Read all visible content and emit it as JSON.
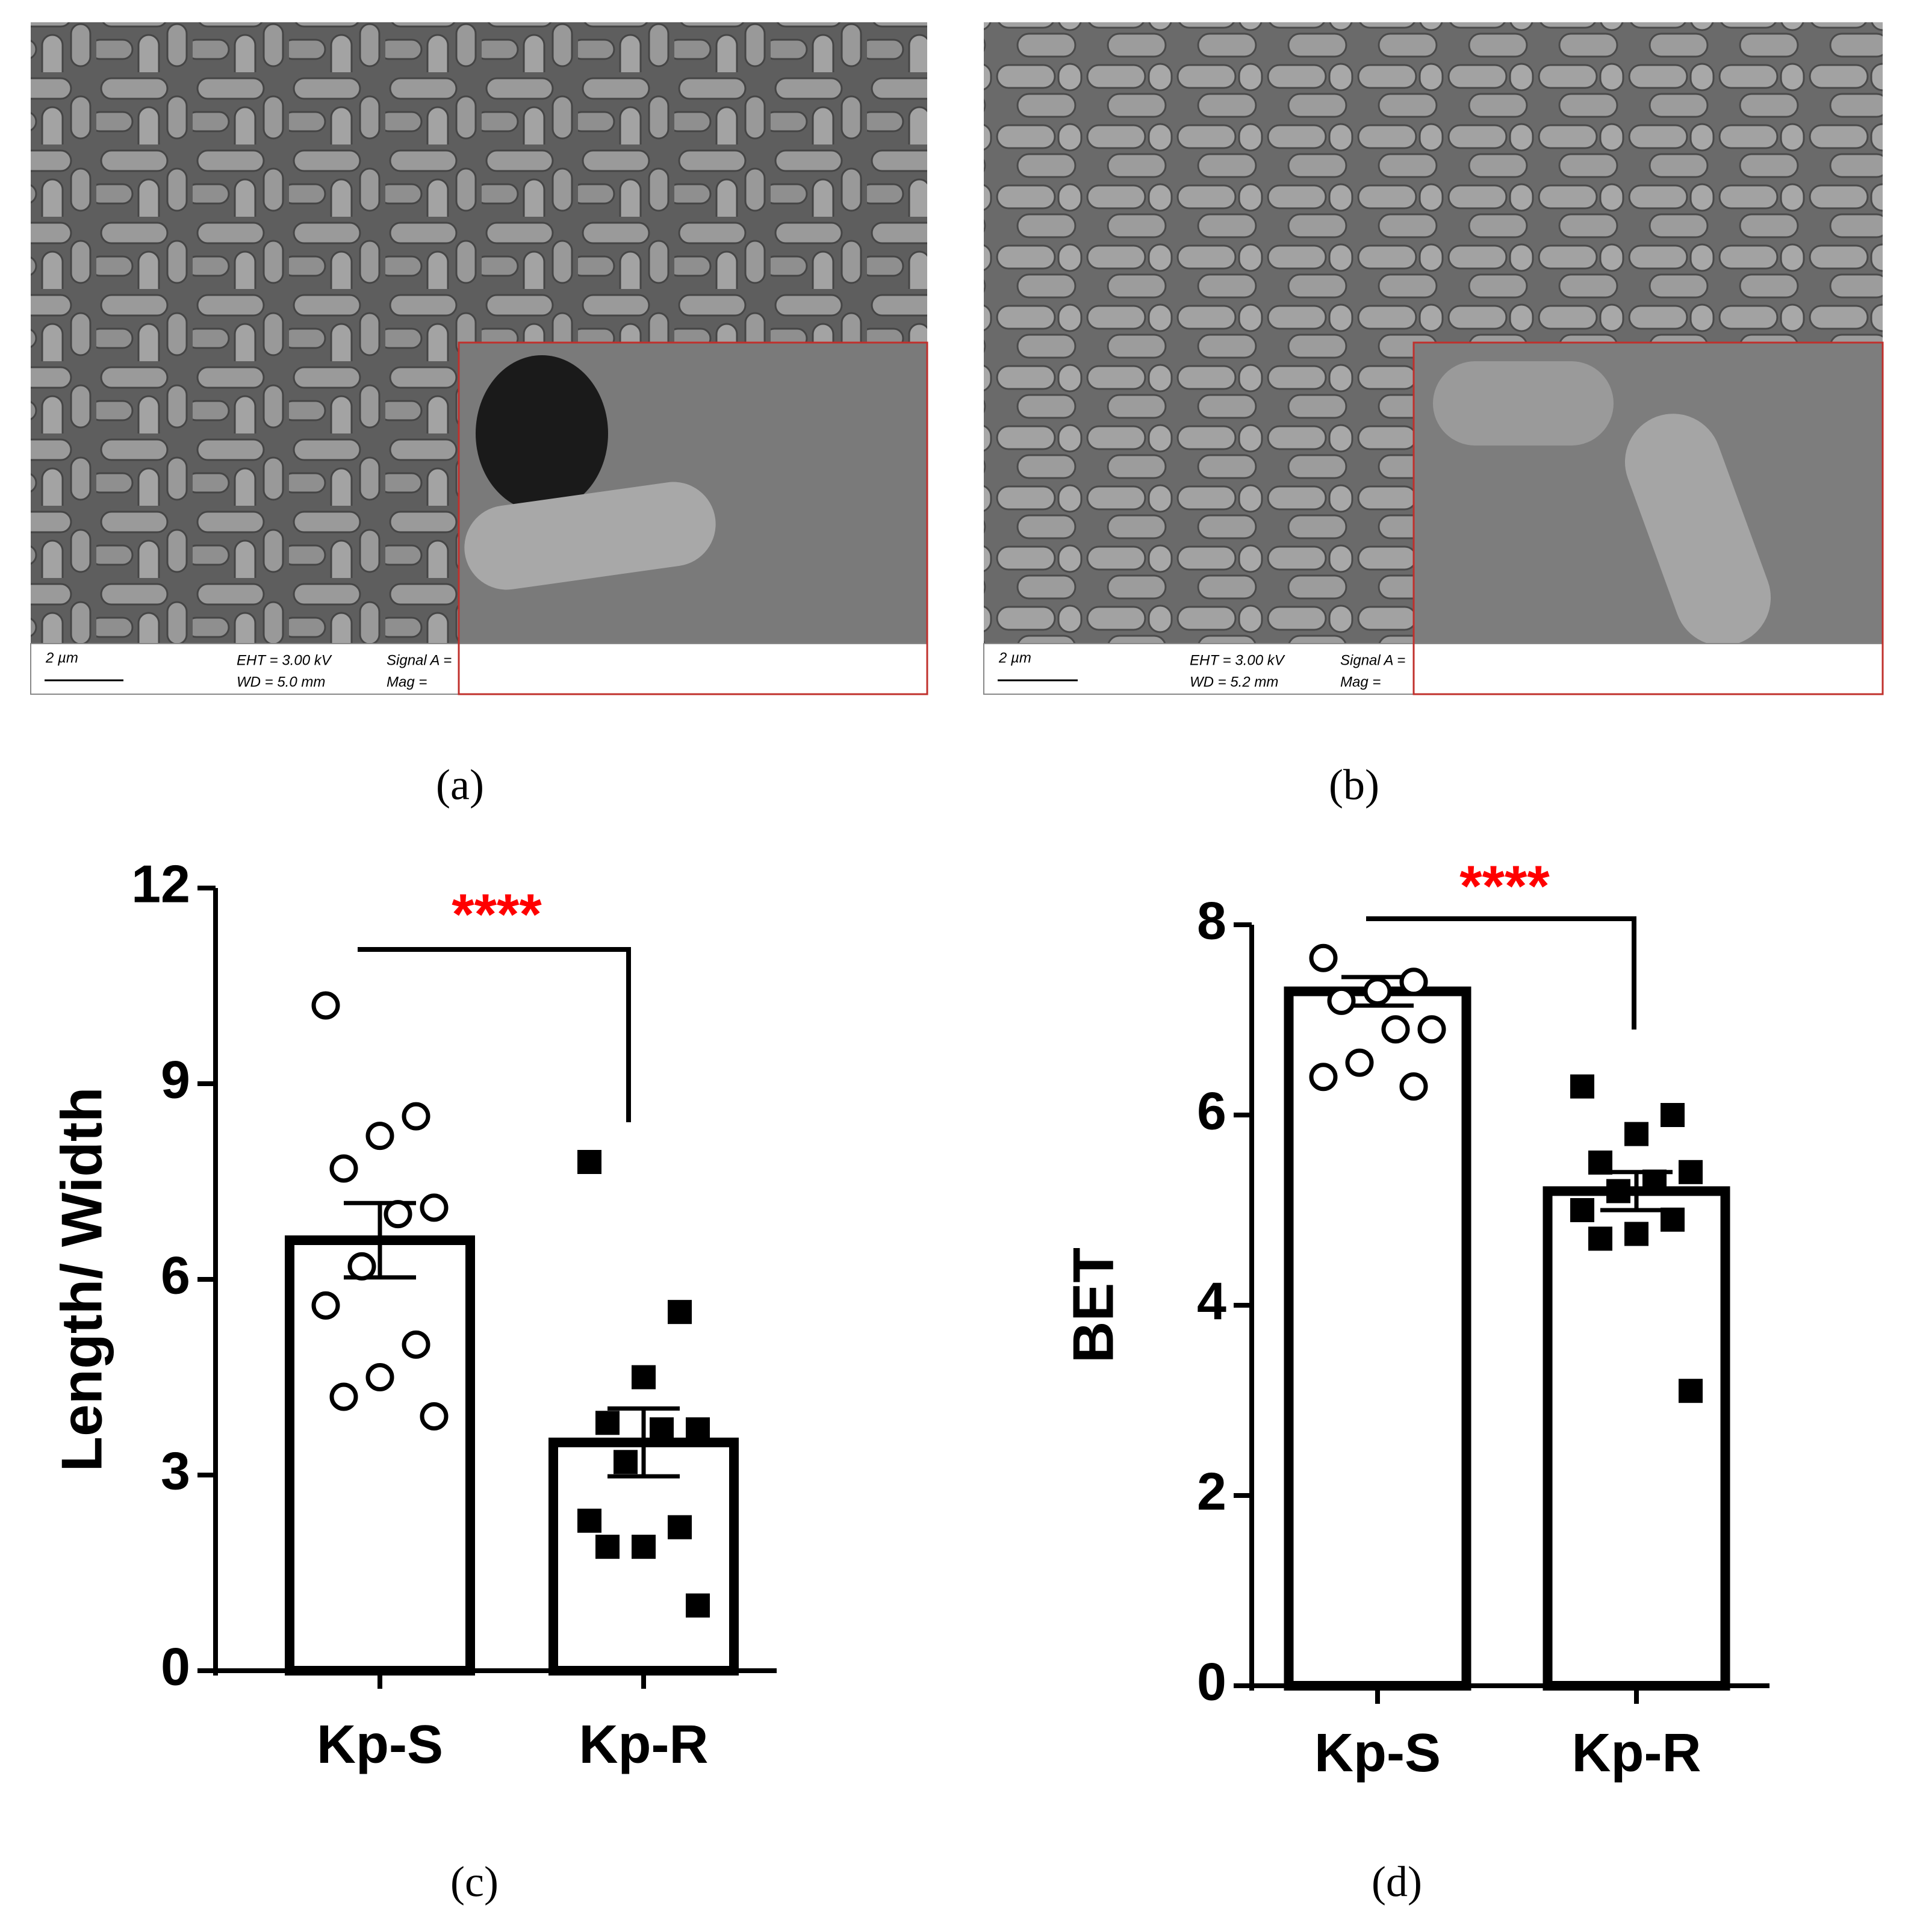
{
  "figure": {
    "panels": [
      "(a)",
      "(b)",
      "(c)",
      "(d)"
    ]
  },
  "images": [
    {
      "scale_bar": "2 µm",
      "eht": "EHT = 3.00 kV",
      "wd": "WD = 5.0 mm",
      "signal": "Signal A =",
      "mag": "Mag ="
    },
    {
      "scale_bar": "2 µm",
      "eht": "EHT = 3.00 kV",
      "wd": "WD = 5.2 mm",
      "signal": "Signal A =",
      "mag": "Mag ="
    }
  ],
  "chart_data": [
    {
      "type": "bar",
      "y_label": "Length/ Width",
      "categories": [
        "Kp-S",
        "Kp-R"
      ],
      "values": [
        6.6,
        3.5
      ],
      "errors": [
        0.57,
        0.52
      ],
      "points": [
        [
          10.2,
          8.5,
          8.2,
          7.7,
          7.1,
          7.0,
          6.2,
          5.6,
          5.0,
          4.5,
          4.2,
          3.9
        ],
        [
          7.8,
          5.5,
          4.5,
          3.8,
          3.7,
          3.7,
          3.2,
          2.3,
          2.2,
          1.9,
          1.9,
          1.0
        ]
      ],
      "markers": [
        "open-circle",
        "filled-square"
      ],
      "significance": "****",
      "color": "#000000",
      "annotation_color": "#ff0000",
      "ylim": [
        0,
        12
      ],
      "yticks": [
        0,
        3,
        6,
        9,
        12
      ]
    },
    {
      "type": "bar",
      "y_label": "BET",
      "categories": [
        "Kp-S",
        "Kp-R"
      ],
      "values": [
        7.3,
        5.2
      ],
      "errors": [
        0.15,
        0.2
      ],
      "points": [
        [
          7.65,
          7.4,
          7.3,
          7.2,
          6.9,
          6.9,
          6.55,
          6.4,
          6.3
        ],
        [
          6.3,
          6.0,
          5.8,
          5.5,
          5.4,
          5.3,
          5.2,
          5.0,
          4.9,
          4.75,
          4.7,
          3.1
        ]
      ],
      "markers": [
        "open-circle",
        "filled-square"
      ],
      "significance": "****",
      "color": "#000000",
      "annotation_color": "#ff0000",
      "ylim": [
        0,
        8
      ],
      "yticks": [
        0,
        2,
        4,
        6,
        8
      ]
    }
  ]
}
